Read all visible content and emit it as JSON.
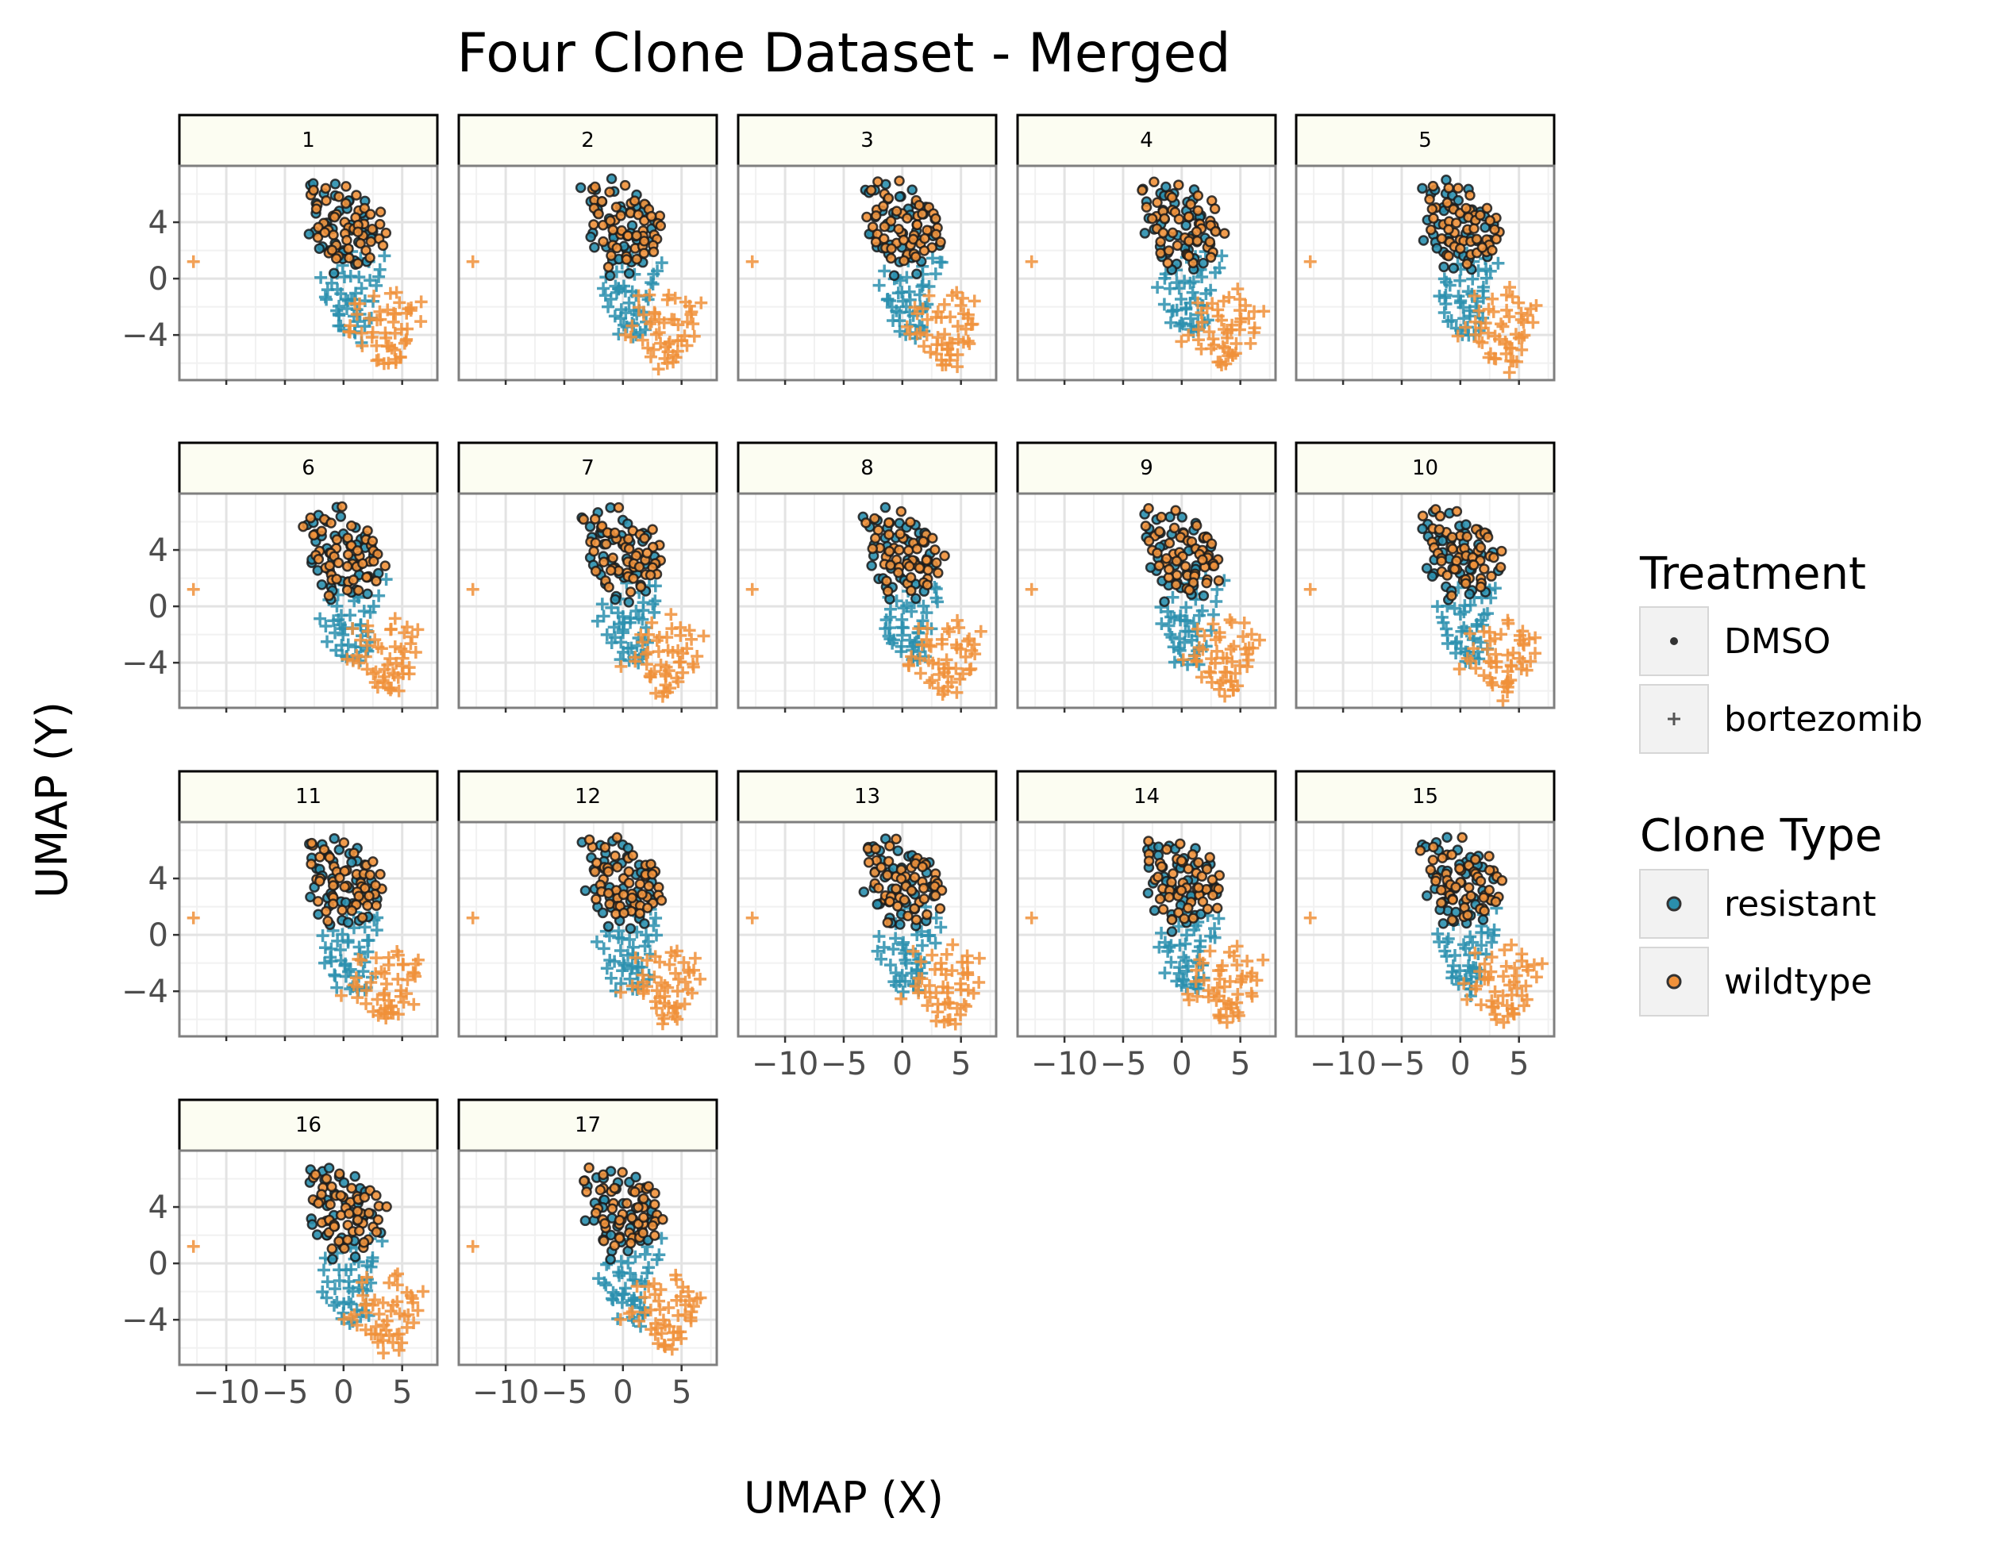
{
  "chart_data": {
    "type": "scatter",
    "title": "Four Clone Dataset - Merged",
    "xlabel": "UMAP (X)",
    "ylabel": "UMAP (Y)",
    "xlim": [
      -14,
      8
    ],
    "ylim": [
      -7.2,
      8.0
    ],
    "x_ticks": [
      -10,
      -5,
      0,
      5
    ],
    "x_tick_labels": [
      "−10",
      "−5",
      "0",
      "5"
    ],
    "y_ticks": [
      -4,
      0,
      4
    ],
    "y_tick_labels": [
      "−4",
      "0",
      "4"
    ],
    "grid": true,
    "facets": [
      "1",
      "2",
      "3",
      "4",
      "5",
      "6",
      "7",
      "8",
      "9",
      "10",
      "11",
      "12",
      "13",
      "14",
      "15",
      "16",
      "17"
    ],
    "facet_columns": 5,
    "legend_placement": "right",
    "legend": {
      "treatment": {
        "title": "Treatment",
        "entries": [
          {
            "label": "DMSO",
            "shape": "circle"
          },
          {
            "label": "bortezomib",
            "shape": "plus"
          }
        ]
      },
      "clone_type": {
        "title": "Clone Type",
        "entries": [
          {
            "label": "resistant",
            "color": "#2a8fae"
          },
          {
            "label": "wildtype",
            "color": "#f0913a"
          }
        ]
      }
    },
    "series": [
      {
        "treatment": "DMSO",
        "clone_type": "resistant",
        "marker": "circle",
        "color": "#2a8fae",
        "x": [
          -3.2,
          -2.8,
          -2.2,
          -1.6,
          -1.0,
          -0.4,
          0.2,
          0.8,
          1.4,
          2.0,
          -2.6,
          -1.9,
          -1.2,
          -0.5,
          0.3,
          1.0,
          1.7,
          2.4,
          -2.4,
          -1.5,
          -0.6,
          0.4,
          1.3,
          2.2,
          -1.8,
          -0.8,
          0.2,
          1.2,
          -1.2,
          0.0,
          1.1,
          -0.5,
          0.8,
          1.9,
          -2.9,
          -2.0,
          -1.1,
          2.8
        ],
        "y": [
          6.2,
          5.8,
          6.4,
          5.6,
          6.7,
          6.1,
          5.4,
          5.9,
          5.2,
          4.8,
          4.6,
          4.9,
          4.4,
          5.0,
          4.7,
          4.2,
          4.5,
          3.8,
          3.4,
          3.8,
          3.2,
          3.6,
          3.0,
          3.3,
          2.4,
          2.8,
          2.2,
          2.6,
          1.6,
          1.9,
          1.4,
          1.0,
          0.6,
          1.2,
          2.9,
          1.9,
          0.5,
          2.6
        ]
      },
      {
        "treatment": "DMSO",
        "clone_type": "wildtype",
        "marker": "circle",
        "color": "#f0913a",
        "x": [
          -3.0,
          -2.5,
          -2.0,
          -1.4,
          -0.8,
          -0.2,
          0.4,
          1.0,
          1.6,
          2.2,
          2.8,
          -2.7,
          -2.1,
          -1.5,
          -0.9,
          -0.3,
          0.3,
          0.9,
          1.5,
          2.1,
          2.7,
          3.3,
          -2.3,
          -1.7,
          -1.1,
          -0.5,
          0.1,
          0.7,
          1.3,
          1.9,
          2.5,
          3.1,
          -1.9,
          -1.2,
          -0.6,
          0.0,
          0.6,
          1.2,
          1.8,
          2.4,
          3.0,
          -1.4,
          -0.7,
          0.0,
          0.7,
          1.4,
          2.1,
          -0.9,
          0.5,
          1.6
        ],
        "y": [
          6.0,
          6.5,
          5.3,
          6.1,
          5.5,
          6.8,
          5.0,
          5.6,
          4.9,
          5.2,
          4.6,
          4.8,
          4.2,
          5.1,
          4.5,
          4.9,
          4.3,
          4.7,
          4.0,
          4.4,
          3.9,
          3.6,
          3.9,
          3.4,
          4.1,
          3.5,
          3.8,
          3.2,
          3.7,
          3.1,
          3.4,
          2.9,
          2.8,
          3.1,
          2.5,
          3.0,
          2.4,
          2.7,
          2.1,
          2.5,
          2.2,
          2.0,
          2.3,
          1.7,
          2.0,
          1.5,
          1.8,
          1.2,
          1.3,
          2.9
        ]
      },
      {
        "treatment": "bortezomib",
        "clone_type": "resistant",
        "marker": "plus",
        "color": "#2a8fae",
        "x": [
          -1.6,
          -1.0,
          -0.4,
          0.2,
          0.8,
          1.4,
          2.0,
          2.6,
          -1.8,
          -1.2,
          -0.6,
          0.0,
          0.6,
          1.2,
          1.8,
          2.4,
          -1.4,
          -0.8,
          -0.2,
          0.4,
          1.0,
          1.6,
          2.2,
          -1.0,
          -0.4,
          0.2,
          0.8,
          1.4,
          2.0,
          -0.6,
          0.0,
          0.6,
          1.2,
          1.8,
          -0.2,
          0.4,
          1.0,
          1.6,
          0.2,
          0.9,
          1.5,
          2.3,
          2.9,
          3.2,
          0.5,
          1.1
        ],
        "y": [
          0.2,
          -0.1,
          0.4,
          -0.3,
          0.1,
          0.5,
          -0.2,
          0.3,
          -0.8,
          -1.1,
          -0.6,
          -1.0,
          -0.7,
          -1.2,
          -0.9,
          -0.5,
          -1.6,
          -1.9,
          -1.4,
          -1.8,
          -1.5,
          -2.0,
          -1.7,
          -2.3,
          -2.6,
          -2.1,
          -2.5,
          -2.2,
          -2.7,
          -2.9,
          -3.2,
          -2.8,
          -3.1,
          -3.3,
          -3.6,
          -3.4,
          -3.8,
          -3.5,
          1.3,
          1.8,
          1.0,
          1.6,
          0.8,
          1.5,
          -4.0,
          -4.2
        ]
      },
      {
        "treatment": "bortezomib",
        "clone_type": "wildtype",
        "marker": "plus",
        "color": "#f0913a",
        "x": [
          -12.8,
          1.2,
          1.8,
          2.4,
          3.0,
          3.6,
          4.2,
          4.8,
          5.4,
          6.0,
          1.5,
          2.1,
          2.7,
          3.3,
          3.9,
          4.5,
          5.1,
          5.7,
          6.3,
          1.0,
          1.6,
          2.2,
          2.8,
          3.4,
          4.0,
          4.6,
          5.2,
          5.8,
          2.0,
          2.6,
          3.2,
          3.8,
          4.4,
          5.0,
          5.6,
          2.8,
          3.4,
          4.0,
          4.6,
          3.2,
          3.8,
          4.4,
          3.6,
          4.2,
          4.4,
          6.6,
          0.2,
          0.7,
          4.9,
          5.5
        ],
        "y": [
          1.2,
          -1.6,
          -2.0,
          -1.4,
          -2.3,
          -1.8,
          -1.2,
          -2.5,
          -1.9,
          -2.4,
          -2.8,
          -3.2,
          -2.6,
          -3.0,
          -3.5,
          -2.9,
          -3.3,
          -2.7,
          -3.1,
          -3.7,
          -4.1,
          -3.6,
          -4.3,
          -3.9,
          -4.5,
          -4.0,
          -3.8,
          -4.2,
          -4.6,
          -5.0,
          -4.4,
          -4.8,
          -5.2,
          -4.7,
          -4.5,
          -5.4,
          -5.8,
          -5.3,
          -5.6,
          -6.0,
          -6.3,
          -5.9,
          -4.9,
          -5.7,
          -1.0,
          -2.0,
          -4.2,
          -3.8,
          -1.5,
          -2.9
        ]
      }
    ]
  }
}
